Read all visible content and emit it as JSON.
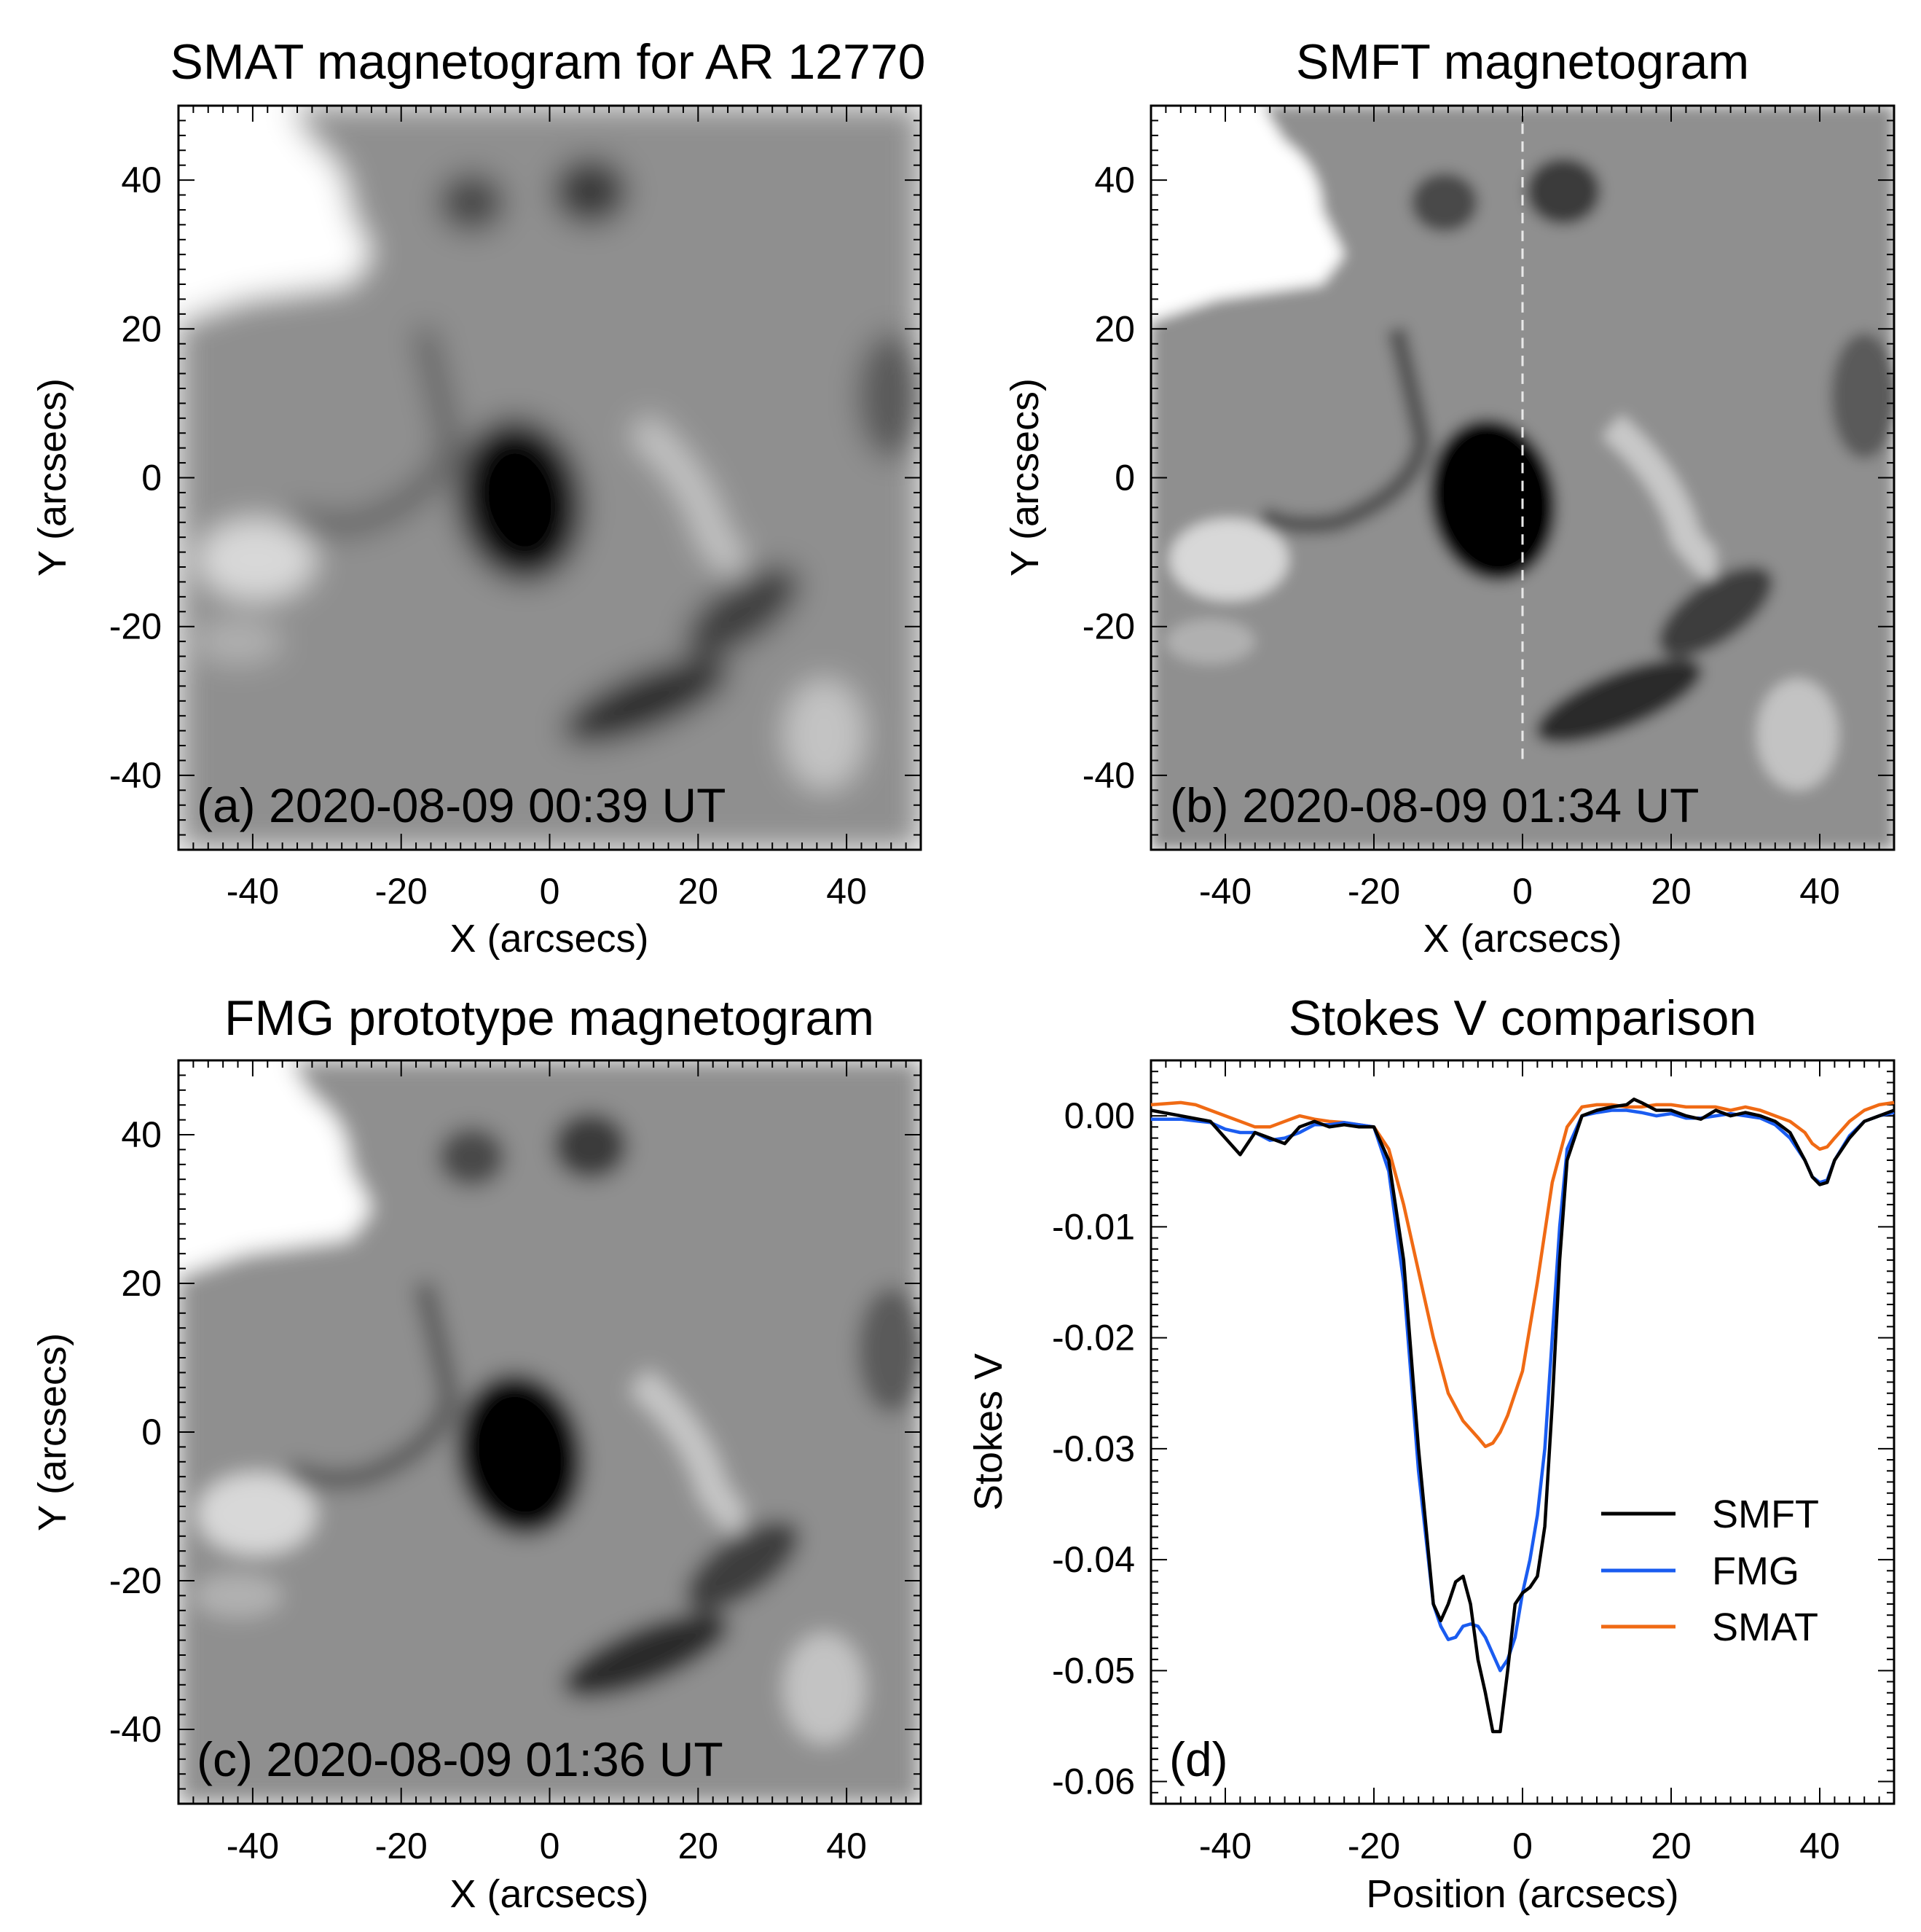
{
  "figure": {
    "panels": [
      {
        "id": "a",
        "title": "SMAT magnetogram for AR 12770",
        "stamp": "(a) 2020-08-09 00:39 UT",
        "xlabel": "X (arcsecs)",
        "ylabel": "Y (arcsecs)",
        "xticks": [
          "-40",
          "-20",
          "0",
          "20",
          "40"
        ],
        "yticks": [
          "40",
          "20",
          "0",
          "-20",
          "-40"
        ]
      },
      {
        "id": "b",
        "title": "SMFT magnetogram",
        "stamp": "(b) 2020-08-09 01:34 UT",
        "xlabel": "X (arcsecs)",
        "ylabel": "Y (arcsecs)",
        "xticks": [
          "-40",
          "-20",
          "0",
          "20",
          "40"
        ],
        "yticks": [
          "40",
          "20",
          "0",
          "-20",
          "-40"
        ]
      },
      {
        "id": "c",
        "title": "FMG prototype magnetogram",
        "stamp": "(c) 2020-08-09 01:36 UT",
        "xlabel": "X (arcsecs)",
        "ylabel": "Y (arcsecs)",
        "xticks": [
          "-40",
          "-20",
          "0",
          "20",
          "40"
        ],
        "yticks": [
          "40",
          "20",
          "0",
          "-20",
          "-40"
        ]
      }
    ]
  },
  "chart_data": {
    "type": "line",
    "title": "Stokes V comparison",
    "panel_label": "(d)",
    "xlabel": "Position (arcsecs)",
    "ylabel": "Stokes V",
    "xlim": [
      -50,
      50
    ],
    "ylim": [
      -0.062,
      0.005
    ],
    "xticks": [
      -40,
      -20,
      0,
      20,
      40
    ],
    "xtick_labels": [
      "-40",
      "-20",
      "0",
      "20",
      "40"
    ],
    "yticks": [
      0.0,
      -0.01,
      -0.02,
      -0.03,
      -0.04,
      -0.05,
      -0.06
    ],
    "ytick_labels": [
      "0.00",
      "-0.01",
      "-0.02",
      "-0.03",
      "-0.04",
      "-0.05",
      "-0.06"
    ],
    "legend_position": "bottom-right",
    "series": [
      {
        "name": "SMFT",
        "color": "#000000",
        "x": [
          -50,
          -46,
          -42,
          -40,
          -38,
          -36,
          -34,
          -32,
          -30,
          -28,
          -26,
          -24,
          -22,
          -20,
          -18,
          -16,
          -14,
          -12,
          -11,
          -10,
          -9,
          -8,
          -7,
          -6,
          -5,
          -4,
          -3,
          -2,
          -1,
          0,
          1,
          2,
          3,
          4,
          5,
          6,
          8,
          10,
          12,
          14,
          15,
          16,
          18,
          20,
          22,
          24,
          26,
          28,
          30,
          32,
          34,
          36,
          38,
          39,
          40,
          41,
          42,
          44,
          46,
          48,
          50
        ],
        "y": [
          0.0005,
          0.0,
          -0.0005,
          -0.002,
          -0.0035,
          -0.0015,
          -0.002,
          -0.0025,
          -0.001,
          -0.0005,
          -0.001,
          -0.0008,
          -0.001,
          -0.001,
          -0.004,
          -0.013,
          -0.03,
          -0.044,
          -0.0455,
          -0.044,
          -0.042,
          -0.0415,
          -0.044,
          -0.049,
          -0.052,
          -0.0555,
          -0.0555,
          -0.05,
          -0.044,
          -0.043,
          -0.0425,
          -0.0415,
          -0.037,
          -0.026,
          -0.013,
          -0.004,
          0.0,
          0.0005,
          0.0008,
          0.001,
          0.0015,
          0.0012,
          0.0005,
          0.0005,
          0.0,
          -0.0003,
          0.0005,
          0.0,
          0.0003,
          0.0,
          -0.0005,
          -0.0015,
          -0.004,
          -0.0055,
          -0.0062,
          -0.006,
          -0.004,
          -0.002,
          -0.0005,
          0.0,
          0.0005
        ]
      },
      {
        "name": "FMG",
        "color": "#1a5cf0",
        "x": [
          -50,
          -46,
          -42,
          -40,
          -38,
          -36,
          -34,
          -32,
          -30,
          -28,
          -26,
          -24,
          -22,
          -20,
          -18,
          -16,
          -14,
          -12,
          -11,
          -10,
          -9,
          -8,
          -7,
          -6,
          -5,
          -4,
          -3,
          -2,
          -1,
          0,
          1,
          2,
          3,
          4,
          5,
          6,
          8,
          10,
          12,
          14,
          16,
          18,
          20,
          22,
          24,
          26,
          28,
          30,
          32,
          34,
          36,
          38,
          39,
          40,
          41,
          42,
          44,
          46,
          48,
          50
        ],
        "y": [
          -0.0003,
          -0.0003,
          -0.0006,
          -0.0012,
          -0.0015,
          -0.0015,
          -0.0022,
          -0.002,
          -0.0015,
          -0.0008,
          -0.0008,
          -0.0006,
          -0.0008,
          -0.001,
          -0.005,
          -0.015,
          -0.032,
          -0.044,
          -0.046,
          -0.0472,
          -0.047,
          -0.046,
          -0.0458,
          -0.046,
          -0.047,
          -0.0485,
          -0.05,
          -0.049,
          -0.047,
          -0.043,
          -0.04,
          -0.036,
          -0.03,
          -0.02,
          -0.01,
          -0.003,
          0.0,
          0.0003,
          0.0005,
          0.0005,
          0.0003,
          0.0,
          0.0002,
          -0.0002,
          -0.0002,
          0.0,
          0.0002,
          0.0,
          -0.0002,
          -0.0008,
          -0.002,
          -0.004,
          -0.0055,
          -0.006,
          -0.0058,
          -0.004,
          -0.0018,
          -0.0005,
          0.0,
          0.0003
        ]
      },
      {
        "name": "SMAT",
        "color": "#f06a14",
        "x": [
          -50,
          -46,
          -44,
          -42,
          -40,
          -38,
          -36,
          -34,
          -32,
          -30,
          -28,
          -26,
          -24,
          -22,
          -20,
          -18,
          -16,
          -14,
          -12,
          -10,
          -8,
          -6,
          -5,
          -4,
          -3,
          -2,
          -1,
          0,
          2,
          4,
          6,
          8,
          10,
          12,
          14,
          16,
          18,
          20,
          22,
          24,
          26,
          28,
          30,
          32,
          34,
          36,
          38,
          39,
          40,
          41,
          42,
          44,
          46,
          48,
          50
        ],
        "y": [
          0.001,
          0.0012,
          0.001,
          0.0005,
          0.0,
          -0.0005,
          -0.001,
          -0.001,
          -0.0005,
          0.0,
          -0.0003,
          -0.0005,
          -0.0006,
          -0.0008,
          -0.001,
          -0.003,
          -0.008,
          -0.014,
          -0.02,
          -0.025,
          -0.0275,
          -0.029,
          -0.0298,
          -0.0295,
          -0.0285,
          -0.027,
          -0.025,
          -0.023,
          -0.015,
          -0.006,
          -0.001,
          0.0008,
          0.001,
          0.001,
          0.0008,
          0.0008,
          0.001,
          0.001,
          0.0008,
          0.0008,
          0.0008,
          0.0005,
          0.0008,
          0.0005,
          0.0,
          -0.0005,
          -0.0015,
          -0.0025,
          -0.003,
          -0.0028,
          -0.002,
          -0.0005,
          0.0005,
          0.001,
          0.0012
        ]
      }
    ]
  }
}
